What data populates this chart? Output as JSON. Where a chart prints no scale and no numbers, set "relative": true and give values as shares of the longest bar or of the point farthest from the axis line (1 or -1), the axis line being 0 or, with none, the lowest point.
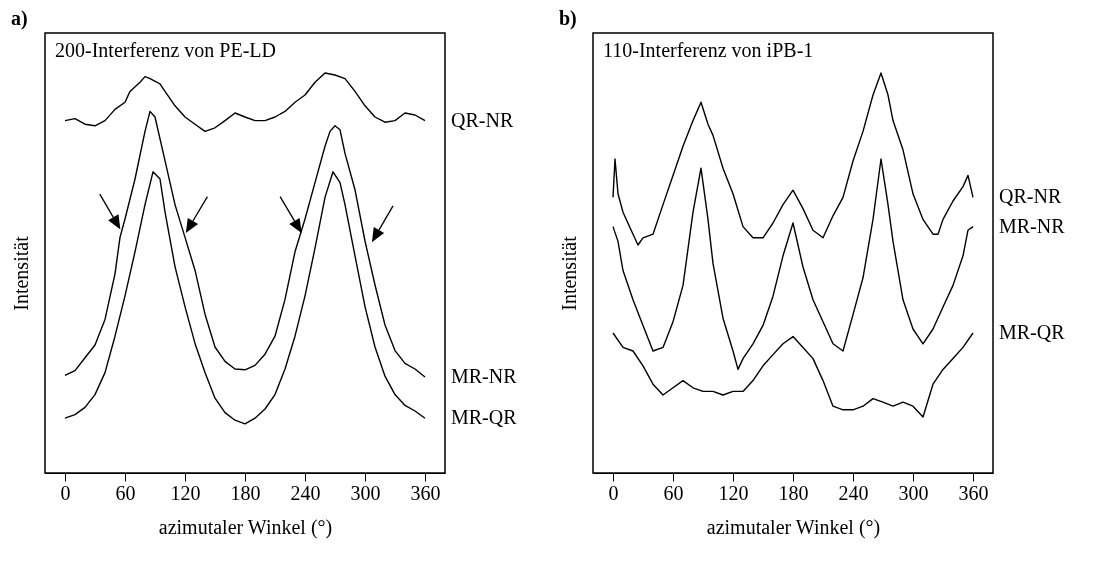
{
  "chart_data": [
    {
      "type": "line",
      "title": "a)",
      "annotations": [
        "200-Interferenz von PE-LD"
      ],
      "xlabel": "azimutaler Winkel (°)",
      "ylabel": "Intensität",
      "relative": true,
      "xlim": [
        -20,
        380
      ],
      "xticks": [
        0,
        60,
        120,
        180,
        240,
        300,
        360
      ],
      "series": [
        {
          "name": "QR-NR",
          "color": "#000000",
          "x": [
            0,
            10,
            20,
            30,
            40,
            50,
            60,
            65,
            75,
            80,
            85,
            95,
            100,
            110,
            120,
            130,
            140,
            150,
            160,
            170,
            180,
            190,
            200,
            210,
            220,
            230,
            240,
            250,
            260,
            270,
            280,
            290,
            300,
            310,
            320,
            330,
            340,
            350,
            360
          ],
          "values": [
            0.881,
            0.886,
            0.872,
            0.868,
            0.881,
            0.909,
            0.927,
            0.954,
            0.977,
            0.991,
            0.986,
            0.973,
            0.954,
            0.918,
            0.89,
            0.872,
            0.854,
            0.863,
            0.881,
            0.9,
            0.89,
            0.881,
            0.881,
            0.89,
            0.904,
            0.927,
            0.945,
            0.977,
            1,
            0.995,
            0.986,
            0.954,
            0.918,
            0.89,
            0.877,
            0.881,
            0.9,
            0.895,
            0.881
          ]
        },
        {
          "name": "MR-NR",
          "color": "#000000",
          "x": [
            0,
            10,
            20,
            30,
            40,
            50,
            55,
            60,
            70,
            80,
            85,
            90,
            100,
            110,
            120,
            130,
            140,
            150,
            160,
            170,
            180,
            190,
            200,
            210,
            220,
            230,
            240,
            250,
            260,
            265,
            270,
            275,
            280,
            290,
            300,
            310,
            320,
            330,
            340,
            350,
            360
          ],
          "values": [
            0.244,
            0.256,
            0.288,
            0.32,
            0.384,
            0.498,
            0.589,
            0.635,
            0.735,
            0.854,
            0.904,
            0.89,
            0.781,
            0.671,
            0.589,
            0.507,
            0.397,
            0.315,
            0.279,
            0.26,
            0.258,
            0.269,
            0.297,
            0.342,
            0.434,
            0.553,
            0.635,
            0.726,
            0.817,
            0.854,
            0.868,
            0.858,
            0.799,
            0.708,
            0.58,
            0.47,
            0.37,
            0.306,
            0.274,
            0.26,
            0.24
          ]
        },
        {
          "name": "MR-QR",
          "color": "#000000",
          "x": [
            0,
            10,
            20,
            30,
            40,
            50,
            60,
            70,
            80,
            88,
            95,
            100,
            110,
            120,
            130,
            140,
            150,
            160,
            170,
            180,
            190,
            200,
            210,
            220,
            230,
            240,
            250,
            260,
            268,
            275,
            280,
            290,
            300,
            310,
            320,
            330,
            340,
            350,
            360
          ],
          "values": [
            0.137,
            0.146,
            0.164,
            0.196,
            0.251,
            0.342,
            0.443,
            0.553,
            0.671,
            0.753,
            0.735,
            0.653,
            0.516,
            0.416,
            0.324,
            0.251,
            0.187,
            0.151,
            0.132,
            0.123,
            0.137,
            0.16,
            0.196,
            0.26,
            0.342,
            0.443,
            0.562,
            0.689,
            0.753,
            0.726,
            0.671,
            0.543,
            0.416,
            0.315,
            0.242,
            0.196,
            0.169,
            0.155,
            0.137
          ]
        }
      ]
    },
    {
      "type": "line",
      "title": "b)",
      "annotations": [
        "110-Interferenz von iPB-1"
      ],
      "xlabel": "azimutaler Winkel (°)",
      "ylabel": "Intensität",
      "relative": true,
      "xlim": [
        -20,
        380
      ],
      "xticks": [
        0,
        60,
        120,
        180,
        240,
        300,
        360
      ],
      "series": [
        {
          "name": "QR-NR",
          "color": "#000000",
          "x": [
            0,
            2,
            5,
            10,
            20,
            25,
            30,
            40,
            50,
            60,
            70,
            80,
            88,
            95,
            100,
            110,
            120,
            130,
            140,
            150,
            160,
            170,
            180,
            190,
            200,
            210,
            220,
            230,
            240,
            250,
            260,
            268,
            275,
            280,
            290,
            300,
            310,
            320,
            325,
            330,
            340,
            350,
            355,
            360
          ],
          "values": [
            0.689,
            0.785,
            0.698,
            0.652,
            0.597,
            0.57,
            0.588,
            0.597,
            0.671,
            0.744,
            0.817,
            0.881,
            0.927,
            0.872,
            0.844,
            0.762,
            0.698,
            0.616,
            0.588,
            0.588,
            0.625,
            0.671,
            0.707,
            0.661,
            0.607,
            0.588,
            0.643,
            0.689,
            0.78,
            0.854,
            0.945,
            1,
            0.945,
            0.881,
            0.808,
            0.698,
            0.634,
            0.597,
            0.597,
            0.634,
            0.68,
            0.716,
            0.744,
            0.689
          ]
        },
        {
          "name": "MR-NR",
          "color": "#000000",
          "x": [
            0,
            5,
            10,
            20,
            30,
            40,
            50,
            60,
            70,
            80,
            88,
            95,
            100,
            110,
            120,
            125,
            130,
            140,
            150,
            160,
            170,
            180,
            190,
            200,
            210,
            220,
            230,
            240,
            250,
            260,
            268,
            275,
            280,
            290,
            300,
            310,
            320,
            330,
            340,
            350,
            355,
            360
          ],
          "values": [
            0.616,
            0.579,
            0.506,
            0.433,
            0.369,
            0.305,
            0.314,
            0.378,
            0.469,
            0.652,
            0.762,
            0.634,
            0.524,
            0.387,
            0.305,
            0.259,
            0.286,
            0.323,
            0.369,
            0.442,
            0.543,
            0.625,
            0.515,
            0.433,
            0.378,
            0.323,
            0.305,
            0.396,
            0.488,
            0.634,
            0.785,
            0.671,
            0.579,
            0.433,
            0.36,
            0.323,
            0.36,
            0.415,
            0.469,
            0.543,
            0.607,
            0.616
          ]
        },
        {
          "name": "MR-QR",
          "color": "#000000",
          "x": [
            0,
            10,
            20,
            30,
            40,
            50,
            60,
            70,
            80,
            90,
            100,
            110,
            120,
            130,
            140,
            150,
            160,
            170,
            180,
            190,
            200,
            210,
            220,
            230,
            240,
            250,
            260,
            270,
            280,
            290,
            300,
            310,
            320,
            330,
            340,
            350,
            360
          ],
          "values": [
            0.35,
            0.314,
            0.305,
            0.268,
            0.222,
            0.195,
            0.213,
            0.231,
            0.213,
            0.204,
            0.204,
            0.195,
            0.204,
            0.204,
            0.231,
            0.268,
            0.296,
            0.323,
            0.341,
            0.314,
            0.286,
            0.231,
            0.167,
            0.158,
            0.158,
            0.167,
            0.186,
            0.177,
            0.167,
            0.177,
            0.167,
            0.14,
            0.222,
            0.259,
            0.286,
            0.314,
            0.35
          ]
        }
      ]
    }
  ]
}
